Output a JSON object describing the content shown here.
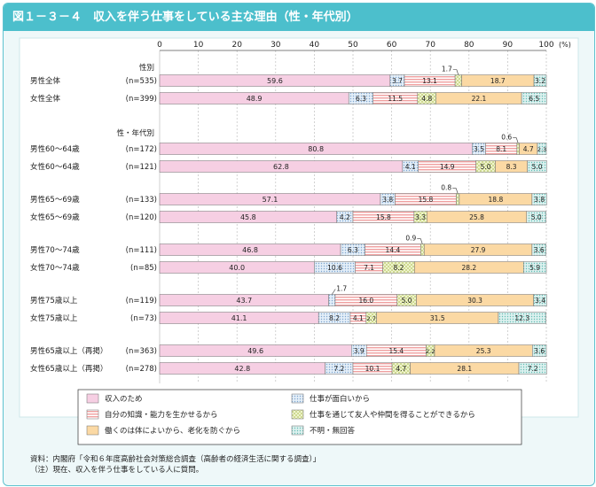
{
  "title": "図１－３－４　収入を伴う仕事をしている主な理由（性・年代別）",
  "notes": {
    "source": "資料：内閣府「令和６年度高齢社会対策総合調査（高齢者の経済生活に関する調査）」",
    "note": "（注）現在、収入を伴う仕事をしている人に質問。"
  },
  "chart_data": {
    "type": "bar",
    "orientation": "horizontal",
    "stacked": true,
    "x_ticks": [
      "0",
      "10",
      "20",
      "30",
      "40",
      "50",
      "60",
      "70",
      "80",
      "90",
      "100"
    ],
    "x_unit": "(%)",
    "xlim": [
      0,
      100
    ],
    "grid": true,
    "legend_position": "bottom",
    "group_labels": [
      "性別",
      "性・年代別"
    ],
    "series": [
      {
        "name": "収入のため",
        "color": "#f6cfe3",
        "pattern": "solid"
      },
      {
        "name": "仕事が面白いから",
        "color": "#dbe7f3",
        "pattern": "dots"
      },
      {
        "name": "自分の知識・能力を生かせるから",
        "color": "#fbe2e2",
        "pattern": "hstripes"
      },
      {
        "name": "仕事を通じて友人や仲間を得ることができるから",
        "color": "#eef4c9",
        "pattern": "crosshatch"
      },
      {
        "name": "働くのは体によいから、老化を防ぐから",
        "color": "#fbd9a4",
        "pattern": "solid"
      },
      {
        "name": "不明・無回答",
        "color": "#d3eceb",
        "pattern": "dots"
      }
    ],
    "rows": [
      {
        "label": "男性全体",
        "n": "(n=535)",
        "values": [
          59.6,
          3.7,
          13.1,
          1.7,
          18.7,
          3.2
        ]
      },
      {
        "label": "女性全体",
        "n": "(n=399)",
        "values": [
          48.9,
          6.3,
          11.5,
          4.8,
          22.1,
          6.5
        ]
      },
      {
        "label": "男性60～64歳",
        "n": "(n=172)",
        "values": [
          80.8,
          3.5,
          8.1,
          0.6,
          4.7,
          2.3
        ]
      },
      {
        "label": "女性60～64歳",
        "n": "(n=121)",
        "values": [
          62.8,
          4.1,
          14.9,
          5.0,
          8.3,
          5.0
        ]
      },
      {
        "label": "男性65～69歳",
        "n": "(n=133)",
        "values": [
          57.1,
          3.8,
          15.8,
          0.8,
          18.8,
          3.8
        ]
      },
      {
        "label": "女性65～69歳",
        "n": "(n=120)",
        "values": [
          45.8,
          4.2,
          15.8,
          3.3,
          25.8,
          5.0
        ]
      },
      {
        "label": "男性70～74歳",
        "n": "(n=111)",
        "values": [
          46.8,
          6.3,
          14.4,
          0.9,
          27.9,
          3.6
        ]
      },
      {
        "label": "女性70～74歳",
        "n": "(n=85)",
        "values": [
          40.0,
          10.6,
          7.1,
          8.2,
          28.2,
          5.9
        ]
      },
      {
        "label": "男性75歳以上",
        "n": "(n=119)",
        "values": [
          43.7,
          1.7,
          16.0,
          5.0,
          30.3,
          3.4
        ]
      },
      {
        "label": "女性75歳以上",
        "n": "(n=73)",
        "values": [
          41.1,
          8.2,
          4.1,
          2.7,
          31.5,
          12.3
        ]
      },
      {
        "label": "男性65歳以上（再掲）",
        "n": "(n=363)",
        "values": [
          49.6,
          3.9,
          15.4,
          2.2,
          25.3,
          3.6
        ]
      },
      {
        "label": "女性65歳以上（再掲）",
        "n": "(n=278)",
        "values": [
          42.8,
          7.2,
          10.1,
          4.7,
          28.1,
          7.2
        ]
      }
    ]
  }
}
